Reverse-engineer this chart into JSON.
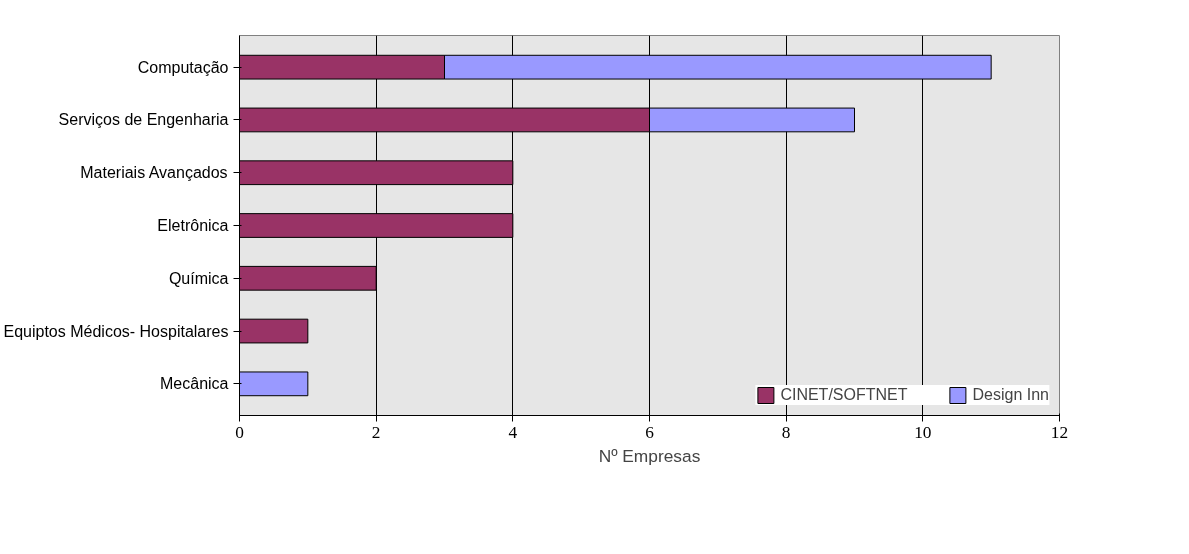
{
  "chart_data": {
    "type": "bar",
    "orientation": "horizontal",
    "stacked": true,
    "xlabel": "Nº Empresas",
    "categories": [
      "Computação",
      "Serviços de Engenharia",
      "Materiais Avançados",
      "Eletrônica",
      "Química",
      "Equiptos Médicos- Hospitalares",
      "Mecânica"
    ],
    "series": [
      {
        "name": "CINET/SOFTNET",
        "color": "#993366",
        "values": [
          3,
          6,
          4,
          4,
          2,
          1,
          null
        ]
      },
      {
        "name": "Design Inn",
        "color": "#9999ff",
        "values": [
          8,
          3,
          null,
          null,
          null,
          null,
          1
        ]
      }
    ],
    "xlim": [
      0,
      12
    ],
    "xticks": [
      0,
      2,
      4,
      6,
      8,
      10,
      12
    ],
    "grid": "x",
    "legend": "bottom right"
  }
}
